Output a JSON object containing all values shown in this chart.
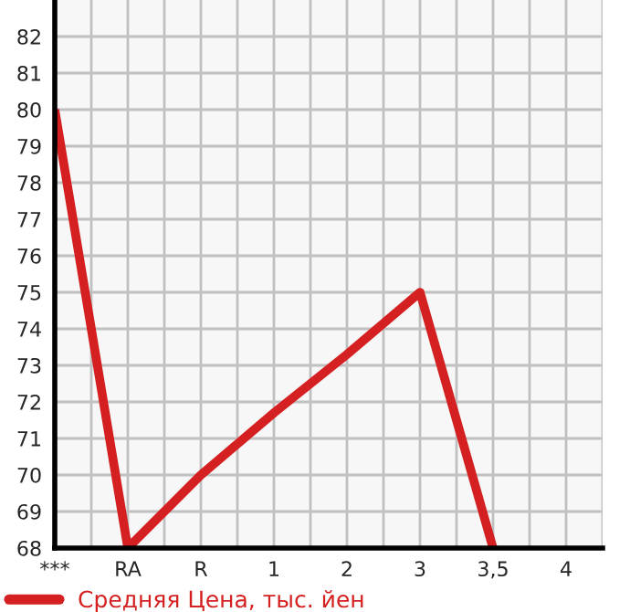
{
  "chart_data": {
    "type": "line",
    "categories": [
      "***",
      "RA",
      "R",
      "1",
      "2",
      "3",
      "3,5",
      "4"
    ],
    "series": [
      {
        "name": "Средняя Цена, тыс. йен",
        "color": "#d42020",
        "values": [
          80,
          68,
          70,
          71.7,
          73.3,
          75,
          68,
          null
        ]
      }
    ],
    "ylim": [
      68,
      83
    ],
    "yticks": [
      68,
      69,
      70,
      71,
      72,
      73,
      74,
      75,
      76,
      77,
      78,
      79,
      80,
      81,
      82
    ],
    "grid": true,
    "legend": "bottom left",
    "marker": "none",
    "line_style": "solid"
  }
}
